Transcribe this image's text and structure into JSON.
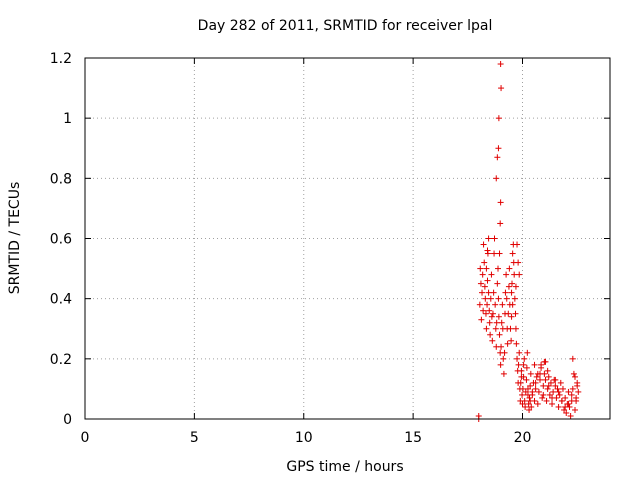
{
  "chart_data": {
    "type": "scatter",
    "title": "Day 282 of 2011, SRMTID for receiver lpal",
    "xlabel": "GPS time / hours",
    "ylabel": "SRMTID / TECUs",
    "xlim": [
      0,
      24
    ],
    "ylim": [
      0,
      1.2
    ],
    "xticks": [
      0,
      5,
      10,
      15,
      20
    ],
    "xtick_labels": [
      "0",
      "5",
      "10",
      "15",
      "20"
    ],
    "yticks": [
      0,
      0.2,
      0.4,
      0.6,
      0.8,
      1,
      1.2
    ],
    "ytick_labels": [
      "0",
      "0.2",
      "0.4",
      "0.6",
      "0.8",
      "1",
      "1.2"
    ],
    "grid": true,
    "marker": "+",
    "marker_color": "#e00000",
    "series": [
      {
        "name": "SRMTID",
        "x": [
          18.05,
          18.07,
          18.1,
          18.12,
          18.15,
          18.18,
          18.2,
          18.22,
          18.25,
          18.28,
          18.3,
          18.33,
          18.35,
          18.38,
          18.4,
          18.42,
          18.45,
          18.48,
          18.5,
          18.52,
          18.55,
          18.58,
          18.6,
          18.62,
          18.65,
          18.68,
          18.7,
          18.72,
          18.75,
          18.78,
          18.8,
          18.82,
          18.85,
          18.88,
          18.9,
          18.92,
          18.95,
          18.98,
          19.0,
          19.02,
          19.05,
          19.08,
          19.1,
          19.12,
          19.15,
          19.18,
          19.2,
          19.22,
          19.25,
          19.28,
          19.3,
          19.32,
          19.35,
          19.38,
          19.4,
          19.42,
          19.45,
          19.48,
          19.5,
          19.52,
          19.55,
          19.58,
          19.6,
          19.62,
          19.65,
          19.68,
          19.7,
          19.72,
          19.75,
          19.78,
          19.8,
          19.82,
          19.85,
          19.88,
          19.9,
          19.92,
          19.95,
          19.98,
          20.0,
          20.02,
          20.05,
          20.08,
          20.1,
          20.12,
          20.15,
          20.18,
          20.2,
          20.22,
          20.25,
          20.28,
          20.3,
          20.32,
          20.35,
          20.38,
          20.4,
          20.45,
          20.5,
          20.55,
          20.6,
          20.65,
          20.7,
          20.75,
          20.8,
          20.85,
          20.9,
          20.95,
          21.0,
          21.05,
          21.1,
          21.15,
          21.2,
          21.25,
          21.3,
          21.35,
          21.4,
          21.45,
          21.5,
          21.55,
          21.6,
          21.65,
          21.7,
          21.75,
          21.8,
          21.85,
          21.9,
          21.95,
          22.0,
          22.05,
          22.1,
          22.15,
          22.2,
          22.25,
          22.3,
          22.35,
          22.4,
          22.45,
          22.5,
          22.55,
          18.95,
          18.98,
          19.0,
          19.0,
          19.02,
          18.92,
          18.9,
          18.85,
          18.8,
          19.75,
          19.8,
          19.85,
          19.7,
          20.55,
          20.7,
          20.85,
          21.0,
          21.05,
          21.15,
          22.3,
          22.4,
          22.5,
          18.4,
          18.45,
          18.35,
          19.5,
          19.55,
          19.95,
          20.05,
          20.25,
          20.35,
          20.45,
          20.6,
          20.8,
          20.95,
          21.2,
          21.35,
          21.5,
          21.65,
          21.8,
          21.95,
          22.1,
          22.25,
          22.45,
          18.0,
          18.0
        ],
        "y": [
          0.38,
          0.5,
          0.45,
          0.33,
          0.42,
          0.48,
          0.36,
          0.58,
          0.52,
          0.44,
          0.4,
          0.35,
          0.3,
          0.38,
          0.46,
          0.55,
          0.42,
          0.36,
          0.32,
          0.28,
          0.4,
          0.48,
          0.34,
          0.26,
          0.35,
          0.42,
          0.55,
          0.6,
          0.38,
          0.3,
          0.24,
          0.32,
          0.45,
          0.5,
          0.4,
          0.34,
          0.28,
          0.22,
          0.18,
          0.24,
          0.32,
          0.38,
          0.3,
          0.2,
          0.15,
          0.22,
          0.35,
          0.42,
          0.48,
          0.4,
          0.3,
          0.25,
          0.35,
          0.44,
          0.5,
          0.38,
          0.3,
          0.26,
          0.34,
          0.45,
          0.55,
          0.58,
          0.52,
          0.48,
          0.4,
          0.35,
          0.3,
          0.25,
          0.2,
          0.16,
          0.12,
          0.18,
          0.22,
          0.1,
          0.06,
          0.12,
          0.16,
          0.08,
          0.05,
          0.1,
          0.14,
          0.2,
          0.06,
          0.04,
          0.09,
          0.13,
          0.17,
          0.22,
          0.08,
          0.05,
          0.03,
          0.07,
          0.11,
          0.15,
          0.04,
          0.08,
          0.12,
          0.06,
          0.1,
          0.14,
          0.05,
          0.09,
          0.13,
          0.18,
          0.07,
          0.11,
          0.15,
          0.19,
          0.06,
          0.1,
          0.14,
          0.08,
          0.12,
          0.05,
          0.09,
          0.13,
          0.11,
          0.07,
          0.1,
          0.04,
          0.08,
          0.12,
          0.06,
          0.1,
          0.03,
          0.07,
          0.02,
          0.05,
          0.09,
          0.04,
          0.01,
          0.06,
          0.1,
          0.15,
          0.03,
          0.07,
          0.12,
          0.09,
          0.55,
          0.65,
          0.72,
          1.18,
          1.1,
          1.0,
          0.9,
          0.87,
          0.8,
          0.58,
          0.52,
          0.48,
          0.44,
          0.18,
          0.15,
          0.17,
          0.19,
          0.13,
          0.16,
          0.2,
          0.14,
          0.11,
          0.56,
          0.6,
          0.5,
          0.42,
          0.38,
          0.14,
          0.18,
          0.1,
          0.06,
          0.09,
          0.12,
          0.15,
          0.08,
          0.11,
          0.07,
          0.13,
          0.09,
          0.06,
          0.04,
          0.05,
          0.08,
          0.06,
          0.0,
          0.01
        ]
      }
    ]
  }
}
